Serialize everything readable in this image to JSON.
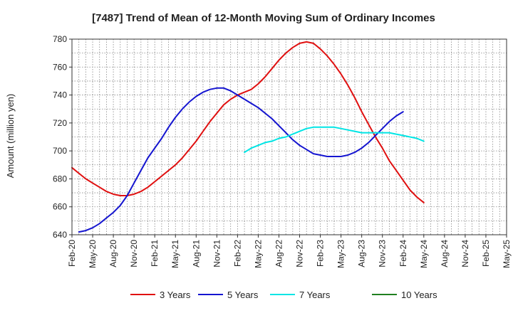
{
  "chart_data": {
    "type": "line",
    "title": "[7487]  Trend of Mean of 12-Month Moving Sum of Ordinary Incomes",
    "xlabel": "",
    "ylabel": "Amount (million yen)",
    "ylim": [
      640,
      780
    ],
    "yticks": [
      640,
      660,
      680,
      700,
      720,
      740,
      760,
      780
    ],
    "x_tick_labels": [
      "Feb-20",
      "May-20",
      "Aug-20",
      "Nov-20",
      "Feb-21",
      "May-21",
      "Aug-21",
      "Nov-21",
      "Feb-22",
      "May-22",
      "Aug-22",
      "Nov-22",
      "Feb-23",
      "May-23",
      "Aug-23",
      "Nov-23",
      "Feb-24",
      "May-24",
      "Aug-24",
      "Nov-24",
      "Feb-25",
      "May-25"
    ],
    "grid": true,
    "legend_position": "bottom",
    "series": [
      {
        "name": "3 Years",
        "color": "#e01010",
        "start_index": 0,
        "values": [
          688,
          684,
          680,
          677,
          674,
          671,
          669,
          668,
          668,
          669,
          671,
          674,
          678,
          682,
          686,
          690,
          695,
          701,
          707,
          714,
          721,
          727,
          733,
          737,
          740,
          742,
          744,
          748,
          753,
          759,
          765,
          770,
          774,
          777,
          778,
          777,
          773,
          768,
          762,
          755,
          747,
          738,
          728,
          719,
          710,
          702,
          693,
          686,
          679,
          672,
          667,
          663
        ]
      },
      {
        "name": "5 Years",
        "color": "#1515d0",
        "start_index": 1,
        "values": [
          642,
          643,
          645,
          648,
          652,
          656,
          661,
          668,
          677,
          686,
          695,
          702,
          709,
          717,
          724,
          730,
          735,
          739,
          742,
          744,
          745,
          745,
          743,
          740,
          737,
          734,
          731,
          727,
          723,
          718,
          713,
          708,
          704,
          701,
          698,
          697,
          696,
          696,
          696,
          697,
          699,
          702,
          706,
          711,
          716,
          721,
          725,
          728
        ]
      },
      {
        "name": "7 Years",
        "color": "#00e5e5",
        "start_index": 25,
        "values": [
          699,
          702,
          704,
          706,
          707,
          709,
          710,
          712,
          714,
          716,
          717,
          717,
          717,
          717,
          716,
          715,
          714,
          713,
          713,
          713,
          713,
          713,
          712,
          711,
          710,
          709,
          707
        ]
      },
      {
        "name": "10 Years",
        "color": "#208020",
        "start_index": 0,
        "values": []
      }
    ]
  }
}
